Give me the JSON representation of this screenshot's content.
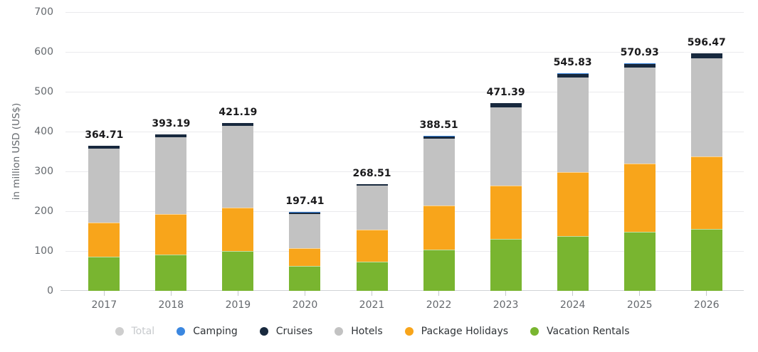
{
  "chart_data": {
    "type": "bar",
    "stacked": true,
    "ylabel": "in million USD (US$)",
    "ylim": [
      0,
      700
    ],
    "yticks": [
      0,
      100,
      200,
      300,
      400,
      500,
      600,
      700
    ],
    "grid": true,
    "legend_position": "bottom",
    "categories": [
      "2017",
      "2018",
      "2019",
      "2020",
      "2021",
      "2022",
      "2023",
      "2024",
      "2025",
      "2026"
    ],
    "totals": [
      "364.71",
      "393.19",
      "421.19",
      "197.41",
      "268.51",
      "388.51",
      "471.39",
      "545.83",
      "570.93",
      "596.47"
    ],
    "series": [
      {
        "name": "Vacation Rentals",
        "color": "#79b530",
        "values": [
          84.9,
          90.5,
          100.5,
          62.0,
          73.0,
          103.5,
          130.5,
          138.0,
          148.0,
          154.5
        ]
      },
      {
        "name": "Package Holidays",
        "color": "#f8a51b",
        "values": [
          87.0,
          101.5,
          109.0,
          45.5,
          81.0,
          110.0,
          134.0,
          161.0,
          171.5,
          183.0
        ]
      },
      {
        "name": "Hotels",
        "color": "#c2c2c2",
        "values": [
          185.5,
          193.0,
          204.0,
          86.0,
          110.0,
          169.5,
          196.5,
          236.0,
          240.5,
          247.0
        ]
      },
      {
        "name": "Cruises",
        "color": "#18293e",
        "values": [
          7.0,
          8.0,
          7.5,
          3.8,
          4.3,
          5.3,
          10.0,
          10.5,
          10.5,
          11.5
        ]
      },
      {
        "name": "Camping",
        "color": "#3b87e0",
        "values": [
          0.31,
          0.19,
          0.19,
          0.11,
          0.21,
          0.21,
          0.39,
          0.33,
          0.43,
          0.47
        ]
      }
    ],
    "legend": [
      {
        "label": "Total",
        "color": "#cecece",
        "inactive": true
      },
      {
        "label": "Camping",
        "color": "#3b87e0",
        "inactive": false
      },
      {
        "label": "Cruises",
        "color": "#18293e",
        "inactive": false
      },
      {
        "label": "Hotels",
        "color": "#c2c2c2",
        "inactive": false
      },
      {
        "label": "Package Holidays",
        "color": "#f8a51b",
        "inactive": false
      },
      {
        "label": "Vacation Rentals",
        "color": "#79b530",
        "inactive": false
      }
    ]
  }
}
